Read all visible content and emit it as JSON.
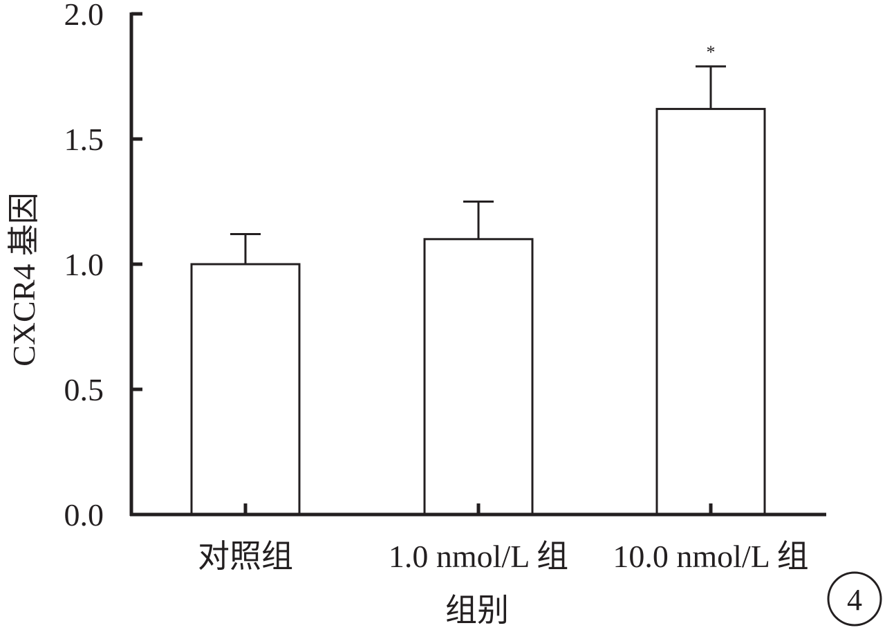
{
  "chart_data": {
    "type": "bar",
    "categories": [
      "对照组",
      "1.0 nmol/L 组",
      "10.0 nmol/L 组"
    ],
    "values": [
      1.0,
      1.1,
      1.62
    ],
    "errors": [
      0.12,
      0.15,
      0.17
    ],
    "annotations": [
      "",
      "",
      "*"
    ],
    "xlabel": "组别",
    "ylabel": "CXCR4 基因",
    "ylim": [
      0,
      2.0
    ],
    "yticks": [
      0.0,
      0.5,
      1.0,
      1.5,
      2.0
    ],
    "ytick_labels": [
      "0.0",
      "0.5",
      "1.0",
      "1.5",
      "2.0"
    ],
    "grid": false,
    "bar_fill": "#ffffff",
    "line_color": "#231f20"
  },
  "panel_label": "4"
}
